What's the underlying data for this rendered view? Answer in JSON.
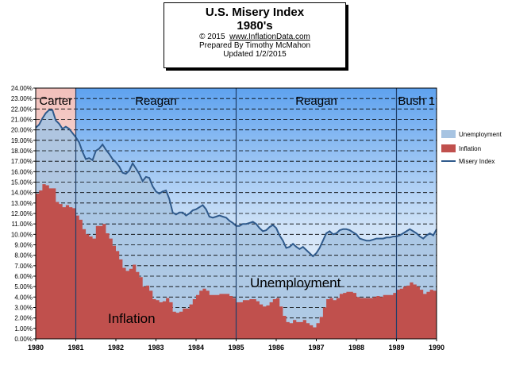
{
  "title": {
    "line1": "U.S. Misery Index",
    "line2": "1980's",
    "copyright": "© 2015",
    "site": "www.InflationData.com",
    "prepared": "Prepared  By Timothy McMahon",
    "updated": "Updated  1/2/2015"
  },
  "colors": {
    "unemployment": "#a7c4e2",
    "inflation": "#c0504d",
    "misery_line": "#2f5a8c",
    "carter_band": "#f2c0bb",
    "admin_band": "#5ea2ef"
  },
  "chart_data": {
    "type": "area",
    "title": "U.S. Misery Index 1980's",
    "x_ticks": [
      "1980",
      "1981",
      "1982",
      "1983",
      "1984",
      "1985",
      "1986",
      "1987",
      "1988",
      "1989",
      "1990"
    ],
    "y_ticks": [
      "0.00%",
      "1.00%",
      "2.00%",
      "3.00%",
      "4.00%",
      "5.00%",
      "6.00%",
      "7.00%",
      "8.00%",
      "9.00%",
      "10.00%",
      "11.00%",
      "12.00%",
      "13.00%",
      "14.00%",
      "15.00%",
      "16.00%",
      "17.00%",
      "18.00%",
      "19.00%",
      "20.00%",
      "21.00%",
      "22.00%",
      "23.00%",
      "24.00%"
    ],
    "xlim": [
      1980,
      1990
    ],
    "ylim": [
      0,
      24
    ],
    "legend": {
      "position": "right",
      "entries": [
        "Unemployment",
        "Inflation",
        "Misery Index"
      ]
    },
    "administrations": [
      {
        "label": "Carter",
        "start": 1980.0,
        "end": 1981.0
      },
      {
        "label": "Reagan",
        "start": 1981.0,
        "end": 1985.0
      },
      {
        "label": "Reagan",
        "start": 1985.0,
        "end": 1989.0
      },
      {
        "label": "Bush 1",
        "start": 1989.0,
        "end": 1990.0
      }
    ],
    "annotations": [
      "Unemployment",
      "Inflation"
    ],
    "x": [
      1980.0,
      1980.083,
      1980.167,
      1980.25,
      1980.333,
      1980.417,
      1980.5,
      1980.583,
      1980.667,
      1980.75,
      1980.833,
      1980.917,
      1981.0,
      1981.083,
      1981.167,
      1981.25,
      1981.333,
      1981.417,
      1981.5,
      1981.583,
      1981.667,
      1981.75,
      1981.833,
      1981.917,
      1982.0,
      1982.083,
      1982.167,
      1982.25,
      1982.333,
      1982.417,
      1982.5,
      1982.583,
      1982.667,
      1982.75,
      1982.833,
      1982.917,
      1983.0,
      1983.083,
      1983.167,
      1983.25,
      1983.333,
      1983.417,
      1983.5,
      1983.583,
      1983.667,
      1983.75,
      1983.833,
      1983.917,
      1984.0,
      1984.083,
      1984.167,
      1984.25,
      1984.333,
      1984.417,
      1984.5,
      1984.583,
      1984.667,
      1984.75,
      1984.833,
      1984.917,
      1985.0,
      1985.083,
      1985.167,
      1985.25,
      1985.333,
      1985.417,
      1985.5,
      1985.583,
      1985.667,
      1985.75,
      1985.833,
      1985.917,
      1986.0,
      1986.083,
      1986.167,
      1986.25,
      1986.333,
      1986.417,
      1986.5,
      1986.583,
      1986.667,
      1986.75,
      1986.833,
      1986.917,
      1987.0,
      1987.083,
      1987.167,
      1987.25,
      1987.333,
      1987.417,
      1987.5,
      1987.583,
      1987.667,
      1987.75,
      1987.833,
      1987.917,
      1988.0,
      1988.083,
      1988.167,
      1988.25,
      1988.333,
      1988.417,
      1988.5,
      1988.583,
      1988.667,
      1988.75,
      1988.833,
      1988.917,
      1989.0,
      1989.083,
      1989.167,
      1989.25,
      1989.333,
      1989.417,
      1989.5,
      1989.583,
      1989.667,
      1989.75,
      1989.833,
      1989.917,
      1990.0
    ],
    "series": [
      {
        "name": "Inflation",
        "values": [
          13.9,
          14.2,
          14.8,
          14.7,
          14.4,
          14.4,
          13.1,
          12.9,
          12.6,
          12.8,
          12.6,
          12.5,
          11.8,
          11.4,
          10.5,
          10.0,
          9.8,
          9.6,
          10.8,
          10.8,
          11.0,
          10.1,
          9.6,
          8.9,
          8.4,
          7.6,
          6.8,
          6.5,
          6.7,
          7.1,
          6.4,
          5.9,
          5.0,
          5.1,
          4.6,
          3.8,
          3.7,
          3.5,
          3.6,
          3.9,
          3.5,
          2.6,
          2.5,
          2.6,
          2.9,
          2.9,
          3.3,
          3.8,
          4.2,
          4.6,
          4.8,
          4.6,
          4.2,
          4.2,
          4.2,
          4.3,
          4.3,
          4.3,
          4.1,
          3.9,
          3.5,
          3.5,
          3.7,
          3.7,
          3.8,
          3.8,
          3.6,
          3.3,
          3.1,
          3.2,
          3.5,
          3.8,
          3.9,
          3.1,
          2.2,
          1.6,
          1.5,
          1.8,
          1.6,
          1.6,
          1.8,
          1.5,
          1.3,
          1.1,
          1.5,
          2.1,
          3.0,
          3.8,
          3.9,
          3.7,
          3.9,
          4.3,
          4.4,
          4.5,
          4.5,
          4.4,
          4.0,
          3.9,
          3.9,
          3.9,
          3.9,
          4.0,
          4.1,
          4.0,
          4.2,
          4.2,
          4.2,
          4.4,
          4.7,
          4.8,
          5.0,
          5.1,
          5.4,
          5.2,
          5.0,
          4.7,
          4.3,
          4.5,
          4.7,
          4.6,
          5.2
        ]
      },
      {
        "name": "Misery Index",
        "values": [
          20.2,
          20.5,
          21.1,
          21.6,
          21.9,
          21.9,
          20.9,
          20.6,
          20.1,
          20.3,
          20.1,
          19.7,
          19.3,
          18.8,
          17.9,
          17.2,
          17.3,
          17.1,
          18.0,
          18.2,
          18.6,
          18.1,
          17.7,
          17.2,
          16.9,
          16.5,
          15.9,
          15.8,
          16.1,
          16.8,
          16.3,
          15.8,
          15.1,
          15.5,
          15.4,
          14.6,
          14.1,
          13.9,
          14.1,
          14.2,
          13.4,
          12.1,
          11.9,
          12.1,
          12.1,
          11.8,
          12.0,
          12.3,
          12.4,
          12.6,
          12.8,
          12.4,
          11.7,
          11.6,
          11.7,
          11.8,
          11.7,
          11.6,
          11.3,
          11.1,
          10.8,
          10.8,
          11.0,
          11.0,
          11.1,
          11.2,
          11.0,
          10.6,
          10.3,
          10.4,
          10.7,
          10.9,
          10.6,
          9.9,
          9.4,
          8.7,
          8.8,
          9.1,
          8.8,
          8.6,
          8.8,
          8.5,
          8.2,
          7.9,
          8.2,
          8.7,
          9.4,
          10.1,
          10.3,
          10.0,
          10.1,
          10.4,
          10.5,
          10.5,
          10.4,
          10.2,
          10.0,
          9.6,
          9.5,
          9.4,
          9.4,
          9.5,
          9.6,
          9.6,
          9.6,
          9.7,
          9.7,
          9.8,
          9.8,
          9.9,
          10.1,
          10.3,
          10.5,
          10.3,
          10.1,
          9.8,
          9.6,
          9.9,
          10.1,
          9.9,
          10.5
        ]
      }
    ]
  }
}
